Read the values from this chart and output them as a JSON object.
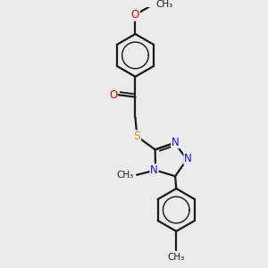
{
  "background_color": "#ebebeb",
  "bond_color": "#1a1a1a",
  "bond_width": 1.6,
  "atom_colors": {
    "O": "#e60000",
    "N": "#1414e6",
    "S": "#c8a800",
    "C": "#1a1a1a"
  },
  "font_size_atom": 8.5,
  "font_size_methyl": 7.5,
  "figsize": [
    3.0,
    3.0
  ],
  "dpi": 100,
  "xlim": [
    0.15,
    0.85
  ],
  "ylim": [
    0.0,
    1.0
  ]
}
